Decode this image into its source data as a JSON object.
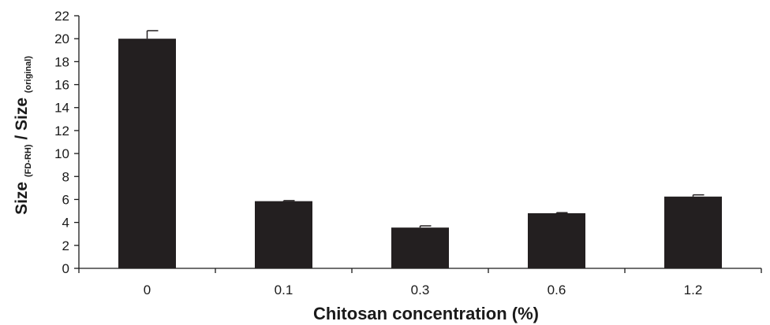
{
  "chart_data": {
    "type": "bar",
    "categories": [
      "0",
      "0.1",
      "0.3",
      "0.6",
      "1.2"
    ],
    "values": [
      20.0,
      5.85,
      3.55,
      4.8,
      6.25
    ],
    "errors": [
      0.7,
      0.05,
      0.15,
      0.05,
      0.15
    ],
    "xlabel": "Chitosan concentration (%)",
    "ylabel": {
      "part1": "Size ",
      "sub1": "(FD-RH)",
      "part2": " / Size ",
      "sub2": "(original)"
    },
    "ylim": [
      0,
      22
    ],
    "yticks": [
      0,
      2,
      4,
      6,
      8,
      10,
      12,
      14,
      16,
      18,
      20,
      22
    ],
    "grid": false,
    "bar_color": "#231f20",
    "axis_color": "#1a1a1a"
  }
}
